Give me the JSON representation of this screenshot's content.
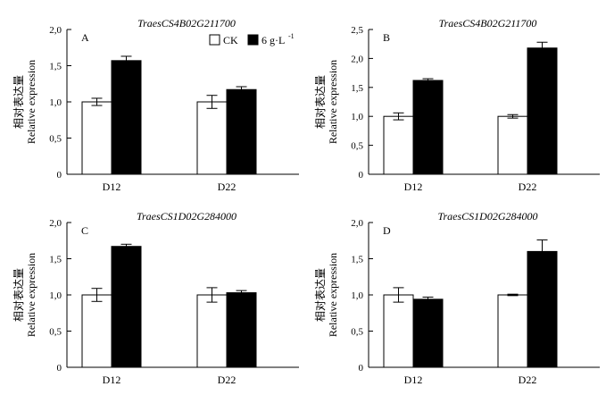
{
  "legend": {
    "series_names": [
      "CK",
      "6 g·L"
    ],
    "superscript": "-1"
  },
  "axis_ylabel_cn": "相对表达量",
  "axis_ylabel_en": "Relative expression",
  "colors": {
    "CK": "#ffffff",
    "treated": "#000000",
    "stroke": "#000000"
  },
  "chart_data": [
    {
      "panel_label": "A",
      "title": "TraesCS4B02G211700",
      "type": "bar",
      "categories": [
        "D12",
        "D22"
      ],
      "series": [
        {
          "name": "CK",
          "values": [
            1.0,
            1.0
          ],
          "errors": [
            0.05,
            0.09
          ]
        },
        {
          "name": "6 g·L-1",
          "values": [
            1.57,
            1.17
          ],
          "errors": [
            0.06,
            0.04
          ]
        }
      ],
      "ylim": [
        0,
        2.0
      ],
      "yticks": [
        0,
        0.5,
        1.0,
        1.5,
        2.0
      ],
      "ytick_labels": [
        "0",
        "0,5",
        "1,0",
        "1,5",
        "2,0"
      ],
      "show_legend": true
    },
    {
      "panel_label": "B",
      "title": "TraesCS4B02G211700",
      "type": "bar",
      "categories": [
        "D12",
        "D22"
      ],
      "series": [
        {
          "name": "CK",
          "values": [
            1.0,
            1.0
          ],
          "errors": [
            0.06,
            0.03
          ]
        },
        {
          "name": "6 g·L-1",
          "values": [
            1.62,
            2.18
          ],
          "errors": [
            0.03,
            0.1
          ]
        }
      ],
      "ylim": [
        0,
        2.5
      ],
      "yticks": [
        0,
        0.5,
        1.0,
        1.5,
        2.0,
        2.5
      ],
      "ytick_labels": [
        "0",
        "0,5",
        "1,0",
        "1,5",
        "2,0",
        "2,5"
      ],
      "show_legend": false
    },
    {
      "panel_label": "C",
      "title": "TraesCS1D02G284000",
      "type": "bar",
      "categories": [
        "D12",
        "D22"
      ],
      "series": [
        {
          "name": "CK",
          "values": [
            1.0,
            1.0
          ],
          "errors": [
            0.09,
            0.1
          ]
        },
        {
          "name": "6 g·L-1",
          "values": [
            1.67,
            1.03
          ],
          "errors": [
            0.03,
            0.03
          ]
        }
      ],
      "ylim": [
        0,
        2.0
      ],
      "yticks": [
        0,
        0.5,
        1.0,
        1.5,
        2.0
      ],
      "ytick_labels": [
        "0",
        "0,5",
        "1,0",
        "1,5",
        "2,0"
      ],
      "show_legend": false
    },
    {
      "panel_label": "D",
      "title": "TraesCS1D02G284000",
      "type": "bar",
      "categories": [
        "D12",
        "D22"
      ],
      "series": [
        {
          "name": "CK",
          "values": [
            1.0,
            1.0
          ],
          "errors": [
            0.1,
            0.01
          ]
        },
        {
          "name": "6 g·L-1",
          "values": [
            0.94,
            1.6
          ],
          "errors": [
            0.03,
            0.16
          ]
        }
      ],
      "ylim": [
        0,
        2.0
      ],
      "yticks": [
        0,
        0.5,
        1.0,
        1.5,
        2.0
      ],
      "ytick_labels": [
        "0",
        "0,5",
        "1,0",
        "1,5",
        "2,0"
      ],
      "show_legend": false
    }
  ]
}
